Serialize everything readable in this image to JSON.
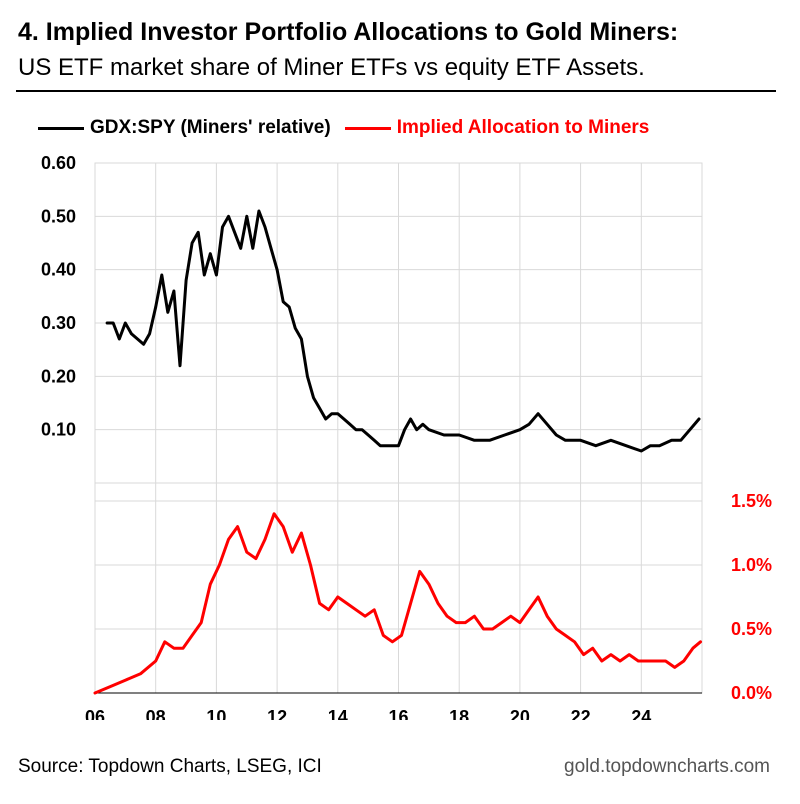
{
  "header": {
    "title": "4. Implied Investor Portfolio Allocations to Gold Miners:",
    "subtitle": "US ETF market share of Miner ETFs vs equity ETF Assets."
  },
  "footer": {
    "source": "Source: Topdown Charts, LSEG, ICI",
    "site": "gold.topdowncharts.com"
  },
  "colors": {
    "series_1": "#000000",
    "series_2": "#ff0000",
    "grid": "#d9d9d9"
  },
  "chart_data": {
    "type": "line",
    "title": "",
    "xlabel": "",
    "x_range": [
      2006,
      2026
    ],
    "x_ticks": [
      2006,
      2008,
      2010,
      2012,
      2014,
      2016,
      2018,
      2020,
      2022,
      2024
    ],
    "x_tick_labels": [
      "06",
      "08",
      "10",
      "12",
      "14",
      "16",
      "18",
      "20",
      "22",
      "24"
    ],
    "grid": true,
    "legend": "top",
    "panels": [
      {
        "name": "upper",
        "ylim": [
          0.0,
          0.6
        ],
        "y_ticks": [
          0.1,
          0.2,
          0.3,
          0.4,
          0.5,
          0.6
        ],
        "y_tick_labels": [
          "0.10",
          "0.20",
          "0.30",
          "0.40",
          "0.50",
          "0.60"
        ],
        "axis_side": "left"
      },
      {
        "name": "lower",
        "ylim": [
          0.0,
          1.5
        ],
        "y_ticks": [
          0.0,
          0.5,
          1.0,
          1.5
        ],
        "y_tick_labels": [
          "0.0%",
          "0.5%",
          "1.0%",
          "1.5%"
        ],
        "axis_side": "right"
      }
    ],
    "series": [
      {
        "name": "GDX:SPY (Miners' relative)",
        "color": "#000000",
        "panel": "upper",
        "x": [
          2006.4,
          2006.6,
          2006.8,
          2007.0,
          2007.2,
          2007.4,
          2007.6,
          2007.8,
          2008.0,
          2008.2,
          2008.4,
          2008.6,
          2008.8,
          2009.0,
          2009.2,
          2009.4,
          2009.6,
          2009.8,
          2010.0,
          2010.2,
          2010.4,
          2010.6,
          2010.8,
          2011.0,
          2011.2,
          2011.4,
          2011.6,
          2011.8,
          2012.0,
          2012.2,
          2012.4,
          2012.6,
          2012.8,
          2013.0,
          2013.2,
          2013.4,
          2013.6,
          2013.8,
          2014.0,
          2014.2,
          2014.4,
          2014.6,
          2014.8,
          2015.0,
          2015.2,
          2015.4,
          2015.6,
          2015.8,
          2016.0,
          2016.2,
          2016.4,
          2016.6,
          2016.8,
          2017.0,
          2017.5,
          2018.0,
          2018.5,
          2019.0,
          2019.5,
          2020.0,
          2020.3,
          2020.6,
          2020.9,
          2021.2,
          2021.5,
          2022.0,
          2022.5,
          2023.0,
          2023.5,
          2024.0,
          2024.3,
          2024.6,
          2025.0,
          2025.3,
          2025.6,
          2025.9
        ],
        "y": [
          0.3,
          0.3,
          0.27,
          0.3,
          0.28,
          0.27,
          0.26,
          0.28,
          0.33,
          0.39,
          0.32,
          0.36,
          0.22,
          0.38,
          0.45,
          0.47,
          0.39,
          0.43,
          0.39,
          0.48,
          0.5,
          0.47,
          0.44,
          0.5,
          0.44,
          0.51,
          0.48,
          0.44,
          0.4,
          0.34,
          0.33,
          0.29,
          0.27,
          0.2,
          0.16,
          0.14,
          0.12,
          0.13,
          0.13,
          0.12,
          0.11,
          0.1,
          0.1,
          0.09,
          0.08,
          0.07,
          0.07,
          0.07,
          0.07,
          0.1,
          0.12,
          0.1,
          0.11,
          0.1,
          0.09,
          0.09,
          0.08,
          0.08,
          0.09,
          0.1,
          0.11,
          0.13,
          0.11,
          0.09,
          0.08,
          0.08,
          0.07,
          0.08,
          0.07,
          0.06,
          0.07,
          0.07,
          0.08,
          0.08,
          0.1,
          0.12
        ]
      },
      {
        "name": "Implied Allocation to Miners",
        "color": "#ff0000",
        "panel": "lower",
        "x": [
          2006.0,
          2006.5,
          2007.0,
          2007.5,
          2008.0,
          2008.3,
          2008.6,
          2008.9,
          2009.2,
          2009.5,
          2009.8,
          2010.1,
          2010.4,
          2010.7,
          2011.0,
          2011.3,
          2011.6,
          2011.9,
          2012.2,
          2012.5,
          2012.8,
          2013.1,
          2013.4,
          2013.7,
          2014.0,
          2014.3,
          2014.6,
          2014.9,
          2015.2,
          2015.5,
          2015.8,
          2016.1,
          2016.4,
          2016.7,
          2017.0,
          2017.3,
          2017.6,
          2017.9,
          2018.2,
          2018.5,
          2018.8,
          2019.1,
          2019.4,
          2019.7,
          2020.0,
          2020.3,
          2020.6,
          2020.9,
          2021.2,
          2021.5,
          2021.8,
          2022.1,
          2022.4,
          2022.7,
          2023.0,
          2023.3,
          2023.6,
          2023.9,
          2024.2,
          2024.5,
          2024.8,
          2025.1,
          2025.4,
          2025.7,
          2025.95
        ],
        "y": [
          0.0,
          0.05,
          0.1,
          0.15,
          0.25,
          0.4,
          0.35,
          0.35,
          0.45,
          0.55,
          0.85,
          1.0,
          1.2,
          1.3,
          1.1,
          1.05,
          1.2,
          1.4,
          1.3,
          1.1,
          1.25,
          1.0,
          0.7,
          0.65,
          0.75,
          0.7,
          0.65,
          0.6,
          0.65,
          0.45,
          0.4,
          0.45,
          0.7,
          0.95,
          0.85,
          0.7,
          0.6,
          0.55,
          0.55,
          0.6,
          0.5,
          0.5,
          0.55,
          0.6,
          0.55,
          0.65,
          0.75,
          0.6,
          0.5,
          0.45,
          0.4,
          0.3,
          0.35,
          0.25,
          0.3,
          0.25,
          0.3,
          0.25,
          0.25,
          0.25,
          0.25,
          0.2,
          0.25,
          0.35,
          0.4
        ]
      }
    ]
  }
}
